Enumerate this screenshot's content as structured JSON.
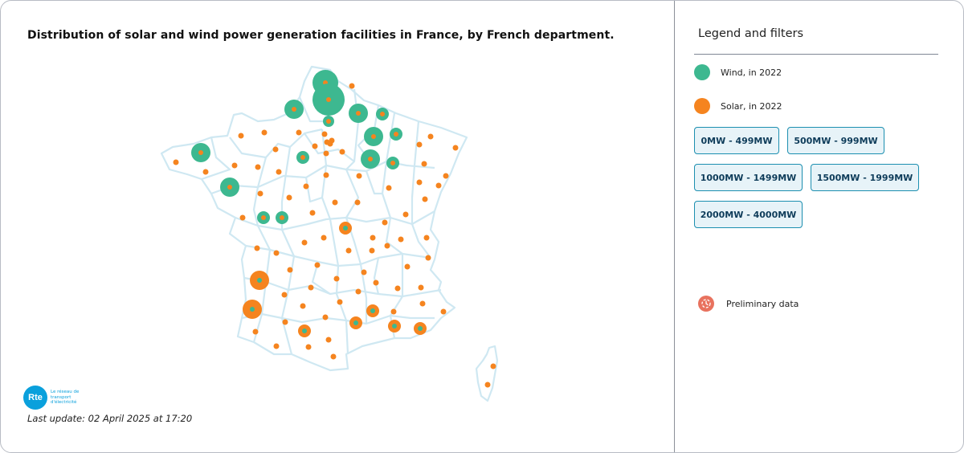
{
  "title": "Distribution of solar and wind power generation facilities in France, by French department.",
  "last_update": "Last update: 02 April 2025 at 17:20",
  "logo": {
    "mark": "Rte",
    "tagline": "Le réseau de transport d'électricité"
  },
  "legend": {
    "title": "Legend and filters",
    "items": [
      {
        "label": "Wind, in 2022",
        "color": "#3db890"
      },
      {
        "label": "Solar, in 2022",
        "color": "#f5841f"
      }
    ],
    "filters": [
      "0MW - 499MW",
      "500MW - 999MW",
      "1000MW - 1499MW",
      "1500MW - 1999MW",
      "2000MW - 4000MW"
    ],
    "preliminary": "Preliminary data"
  },
  "colors": {
    "wind": "#3db890",
    "solar": "#f5841f",
    "border": "#cfe8f2",
    "accent": "#1c8fb0"
  }
}
